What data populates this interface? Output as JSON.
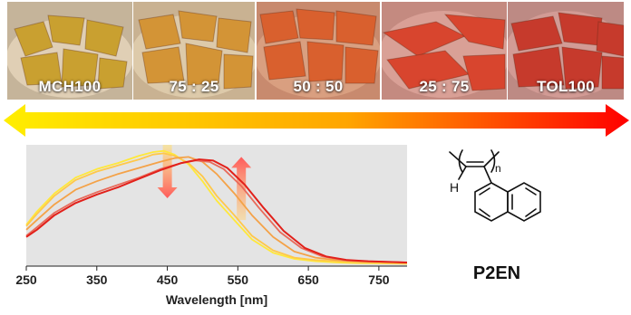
{
  "photos": [
    {
      "label": "MCH100",
      "color": "#c9a030"
    },
    {
      "label": "75 : 25",
      "color": "#d39436"
    },
    {
      "label": "50 : 50",
      "color": "#d9602e"
    },
    {
      "label": "25 : 75",
      "color": "#d8452e"
    },
    {
      "label": "TOL100",
      "color": "#c63a2c"
    }
  ],
  "arrow": {
    "start_color": "#ffee00",
    "end_color": "#ff0000"
  },
  "compound": {
    "name": "P2EN",
    "atom_label": "H",
    "subscript": "n"
  },
  "chart_data": {
    "type": "line",
    "title": "",
    "xlabel": "Wavelength [nm]",
    "ylabel": "",
    "xlim": [
      250,
      790
    ],
    "ylim": [
      0,
      1
    ],
    "grid": false,
    "background": "#e4e4e4",
    "xticks": [
      250,
      350,
      450,
      550,
      650,
      750
    ],
    "series": [
      {
        "color": "#ffe83a",
        "x": [
          250,
          265,
          290,
          320,
          350,
          380,
          410,
          430,
          445,
          460,
          480,
          500,
          520,
          545,
          570,
          600,
          630,
          660,
          690,
          720,
          790
        ],
        "y": [
          0.34,
          0.45,
          0.6,
          0.73,
          0.8,
          0.85,
          0.91,
          0.94,
          0.95,
          0.92,
          0.84,
          0.7,
          0.54,
          0.38,
          0.22,
          0.11,
          0.06,
          0.04,
          0.03,
          0.025,
          0.02
        ]
      },
      {
        "color": "#ffc84a",
        "x": [
          250,
          265,
          290,
          320,
          350,
          380,
          410,
          430,
          445,
          460,
          480,
          500,
          520,
          545,
          570,
          600,
          630,
          660,
          690,
          720,
          790
        ],
        "y": [
          0.33,
          0.43,
          0.58,
          0.71,
          0.78,
          0.83,
          0.88,
          0.92,
          0.93,
          0.91,
          0.85,
          0.74,
          0.58,
          0.42,
          0.25,
          0.13,
          0.07,
          0.05,
          0.04,
          0.03,
          0.02
        ]
      },
      {
        "color": "#f4a248",
        "x": [
          250,
          265,
          290,
          320,
          350,
          380,
          410,
          440,
          460,
          480,
          500,
          520,
          545,
          570,
          600,
          630,
          660,
          690,
          720,
          790
        ],
        "y": [
          0.3,
          0.38,
          0.51,
          0.63,
          0.7,
          0.76,
          0.81,
          0.86,
          0.89,
          0.9,
          0.86,
          0.76,
          0.6,
          0.42,
          0.24,
          0.12,
          0.07,
          0.05,
          0.04,
          0.03
        ]
      },
      {
        "color": "#e86a5a",
        "x": [
          250,
          265,
          290,
          320,
          350,
          380,
          410,
          440,
          470,
          490,
          510,
          530,
          555,
          580,
          610,
          640,
          670,
          700,
          730,
          790
        ],
        "y": [
          0.25,
          0.32,
          0.44,
          0.54,
          0.61,
          0.67,
          0.73,
          0.8,
          0.85,
          0.87,
          0.86,
          0.8,
          0.66,
          0.48,
          0.28,
          0.15,
          0.08,
          0.05,
          0.04,
          0.03
        ]
      },
      {
        "color": "#e2201a",
        "x": [
          250,
          265,
          290,
          320,
          350,
          380,
          410,
          440,
          470,
          495,
          515,
          535,
          560,
          585,
          615,
          645,
          675,
          705,
          735,
          790
        ],
        "y": [
          0.24,
          0.3,
          0.42,
          0.52,
          0.59,
          0.65,
          0.72,
          0.79,
          0.85,
          0.88,
          0.87,
          0.81,
          0.67,
          0.49,
          0.29,
          0.15,
          0.08,
          0.05,
          0.04,
          0.03
        ]
      }
    ],
    "annotations": [
      {
        "kind": "arrow-down",
        "x": 450,
        "y_from": 1.0,
        "y_to": 0.56
      },
      {
        "kind": "arrow-up",
        "x": 555,
        "y_from": 0.38,
        "y_to": 0.9
      }
    ]
  }
}
